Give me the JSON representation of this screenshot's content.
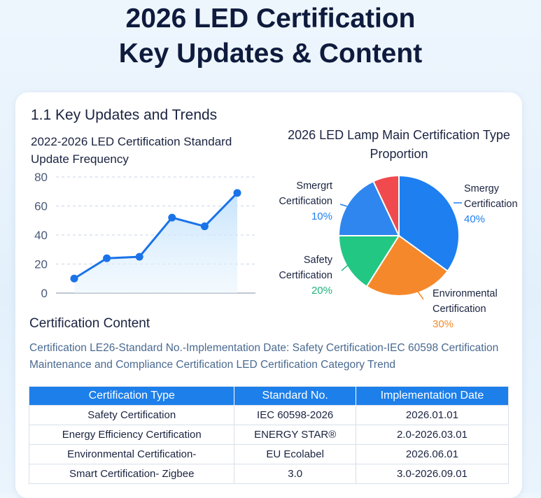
{
  "title": {
    "line1": "2026 LED Certification",
    "line2": "Key Updates & Content"
  },
  "section1": "1.1  Key Updates and Trends",
  "section2": "Certification Content",
  "description": "Certification LE26-Standard No.-Implementation Date: Safety Certification-IEC 60598 Certification Maintenance and Compliance Certification LED Certification Category Trend",
  "chart_data": [
    {
      "type": "area",
      "title": "2022-2026 LED Certification Standard Update Frequency",
      "ylim": [
        0,
        80
      ],
      "yticks": [
        0,
        20,
        40,
        60,
        80
      ],
      "grid": true,
      "color": "#1a73e8",
      "values": [
        10,
        24,
        25,
        52,
        46,
        69
      ]
    },
    {
      "type": "pie",
      "title": "2026 LED Lamp Main Certification Type Proportion",
      "slices": [
        {
          "label": "Smergy Certification",
          "pct": "40%",
          "value": 40,
          "color": "#1e7ff0",
          "label_color": "#1e7ff0"
        },
        {
          "label": "Environmental Certification",
          "pct": "30%",
          "value": 30,
          "color": "#f5882a",
          "label_color": "#f58a2a"
        },
        {
          "label": "Safety Certification",
          "pct": "20%",
          "value": 20,
          "color": "#22c784",
          "label_color": "#1fb57a"
        },
        {
          "label": "Smergrt Certification",
          "pct": "10%",
          "value": 10,
          "color": "#2f86ee",
          "label_color": "#1e7ff0"
        },
        {
          "label": "",
          "pct": "",
          "value": null,
          "color": "#f04a4f"
        }
      ]
    }
  ],
  "table": {
    "headers": [
      "Certification Type",
      "Standard No.",
      "Implementation Date"
    ],
    "rows": [
      [
        "Safety Certification",
        "IEC 60598-2026",
        "2026.01.01"
      ],
      [
        "Energy Efficiency Certification",
        "ENERGY STAR®",
        "2.0-2026.03.01"
      ],
      [
        "Environmental Certification-",
        "EU Ecolabel",
        "2026.06.01"
      ],
      [
        "Smart Certification- Zigbee",
        "3.0",
        "3.0-2026.09.01"
      ]
    ]
  }
}
